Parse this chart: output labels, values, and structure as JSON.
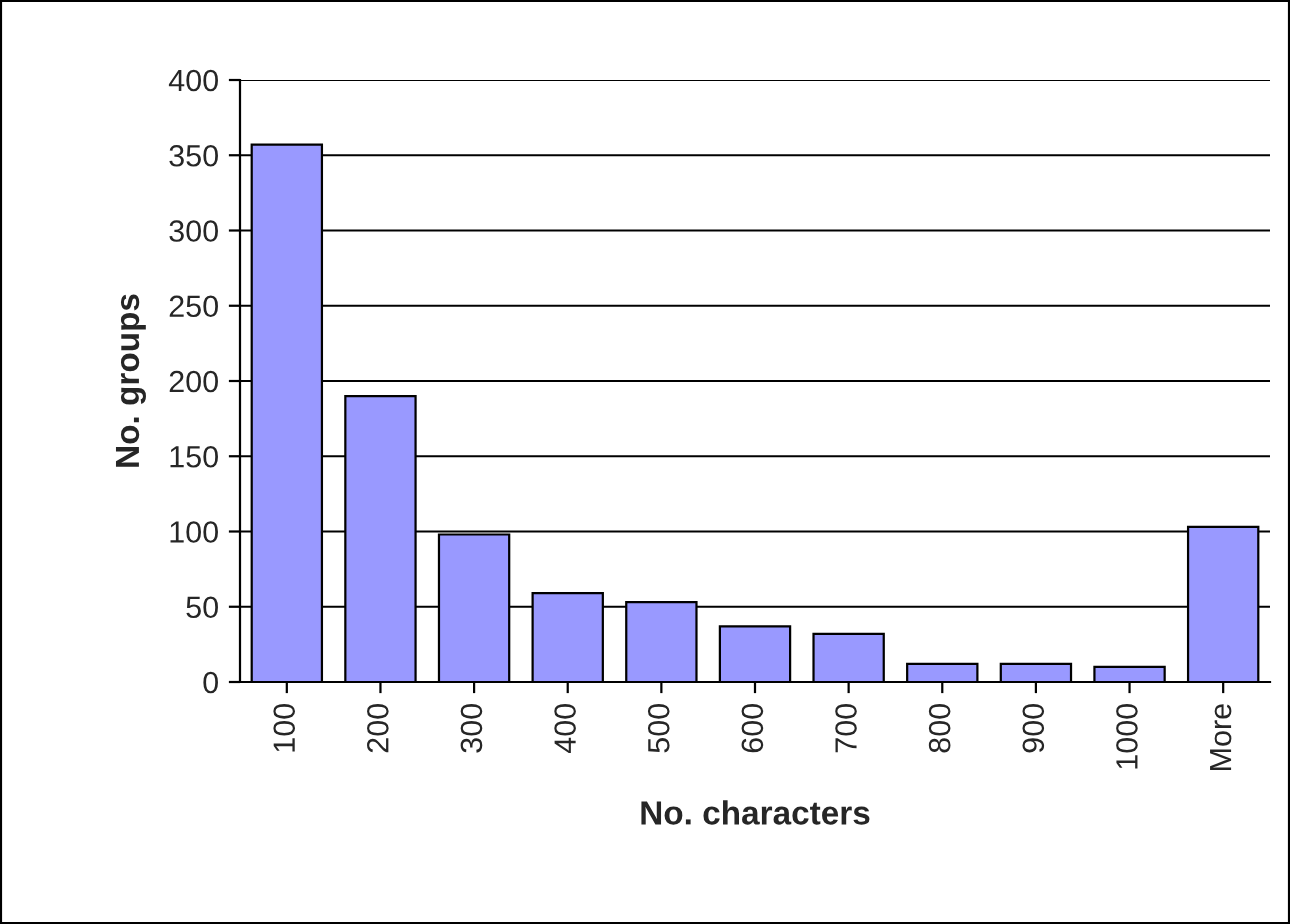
{
  "chart_data": {
    "type": "bar",
    "xlabel": "No. characters",
    "ylabel": "No. groups",
    "categories": [
      "100",
      "200",
      "300",
      "400",
      "500",
      "600",
      "700",
      "800",
      "900",
      "1000",
      "More"
    ],
    "values": [
      357,
      190,
      98,
      59,
      53,
      37,
      32,
      12,
      12,
      10,
      103
    ],
    "color": "#9999ff",
    "ylim": [
      0,
      400
    ],
    "yticks": [
      0,
      50,
      100,
      150,
      200,
      250,
      300,
      350,
      400
    ],
    "grid": "y",
    "legend": false
  }
}
